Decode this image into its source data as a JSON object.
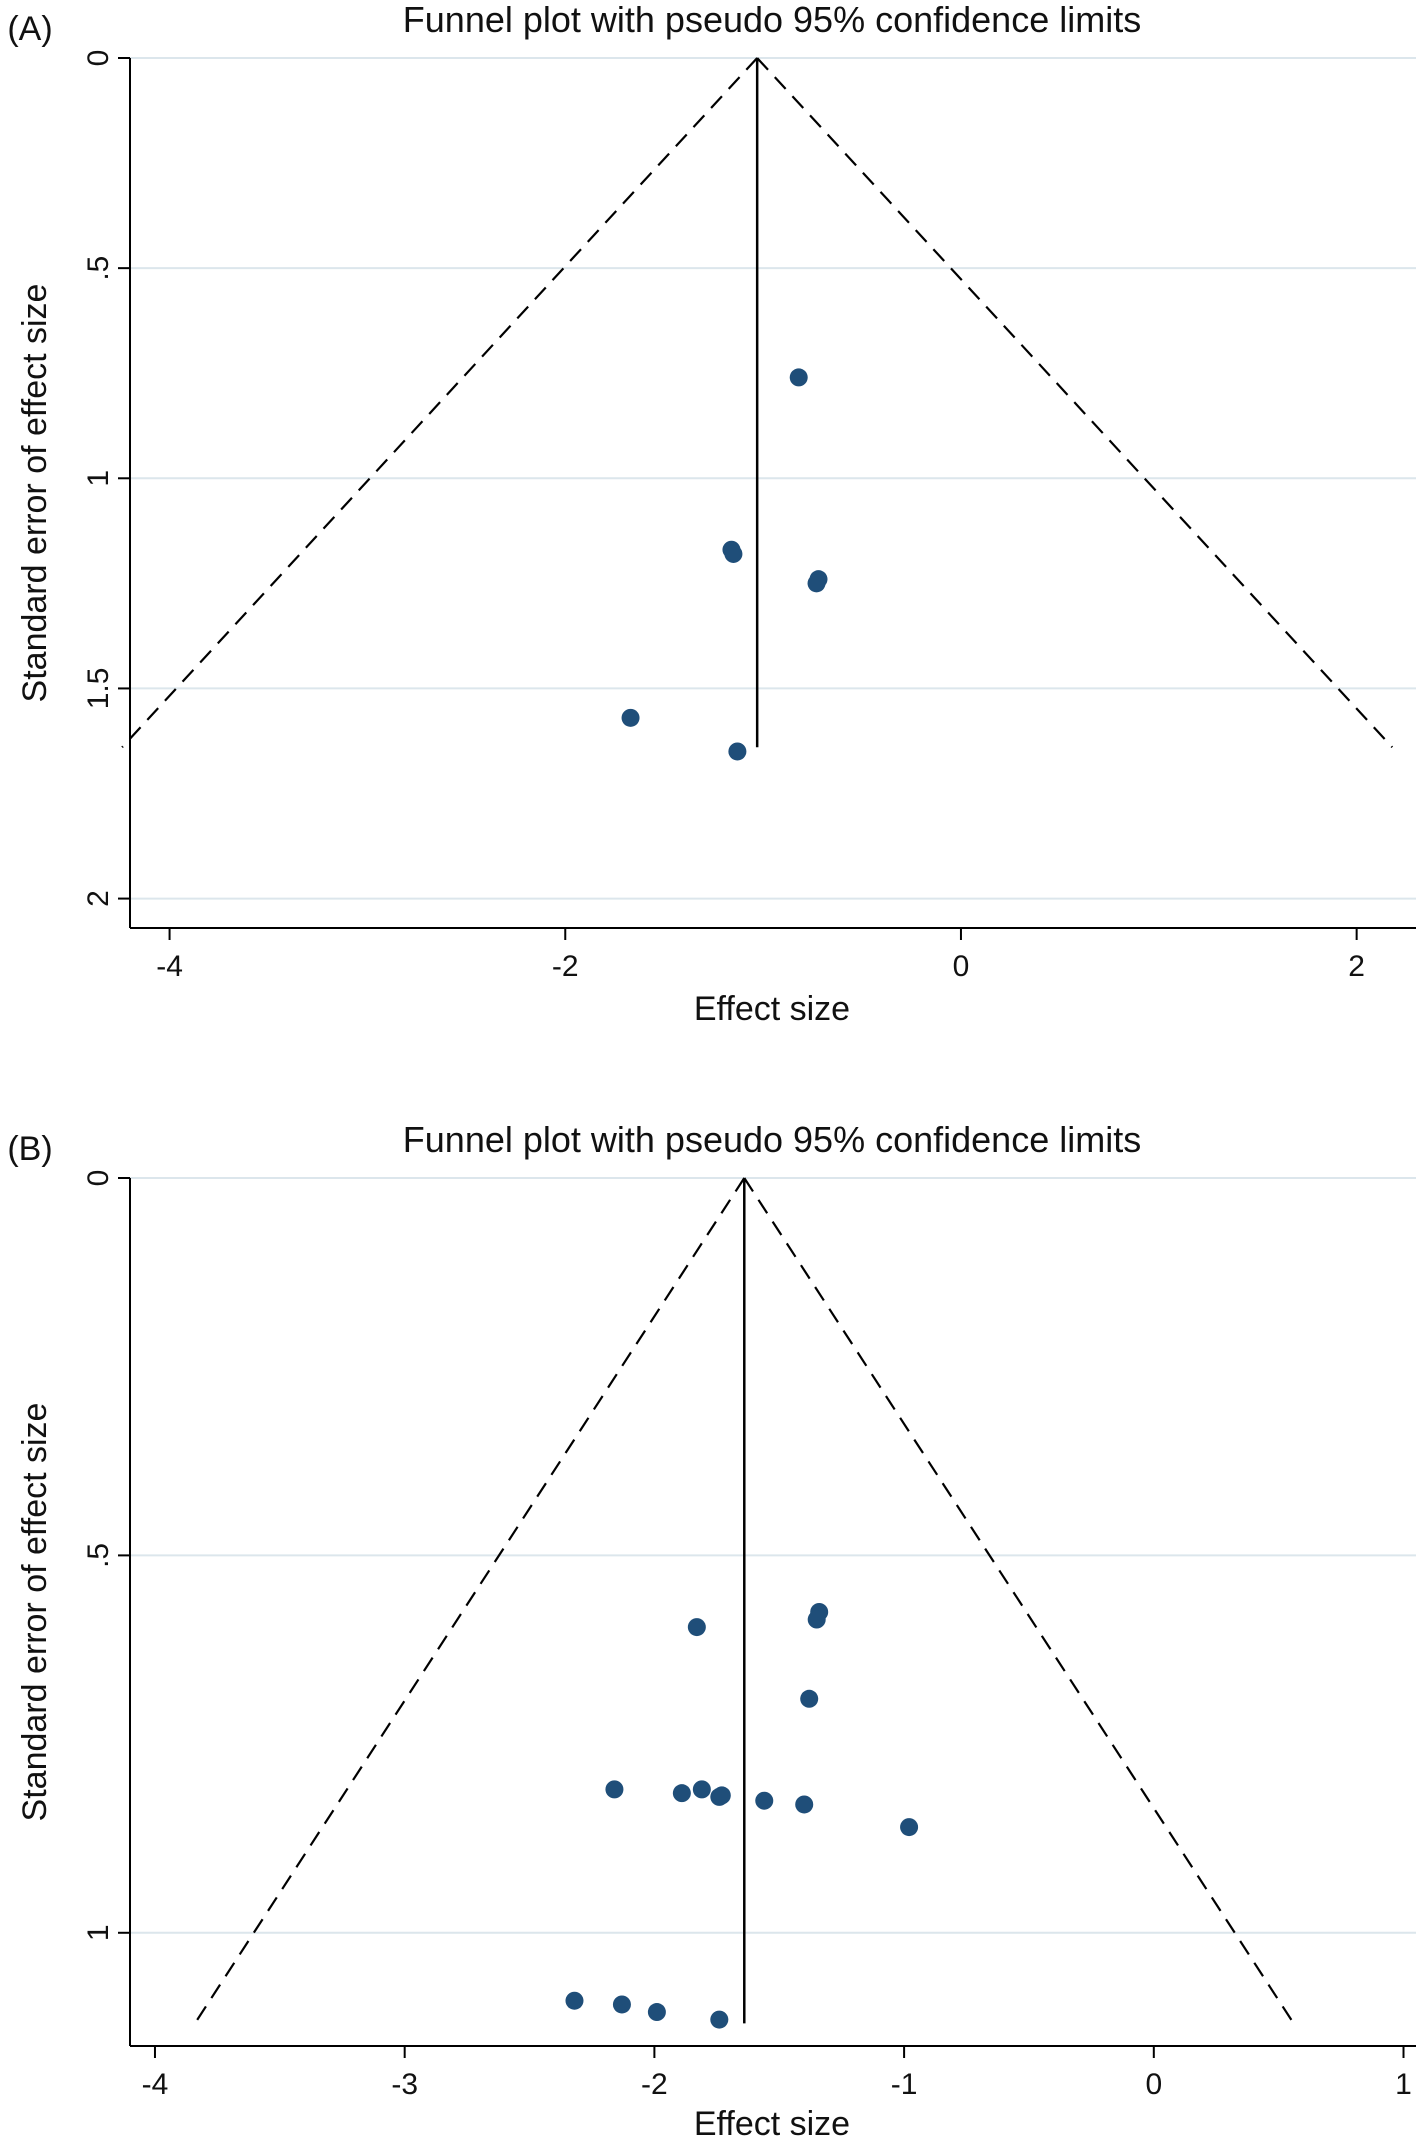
{
  "chart_data": [
    {
      "panel_label": "(A)",
      "type": "scatter",
      "title": "Funnel plot with pseudo 95% confidence limits",
      "xlabel": "Effect size",
      "ylabel": "Standard error of effect size",
      "xlim": [
        -4.2,
        2.3
      ],
      "ylim": [
        0,
        2.07
      ],
      "y_reversed": true,
      "xticks": [
        -4,
        -2,
        0,
        2
      ],
      "xtick_labels": [
        "-4",
        "-2",
        "0",
        "2"
      ],
      "yticks": [
        0,
        0.5,
        1,
        1.5,
        2
      ],
      "ytick_labels": [
        "0",
        ".5",
        "1",
        "1.5",
        "2"
      ],
      "grid": "horizontal",
      "pooled_effect": -1.03,
      "funnel": {
        "apex": [
          -1.03,
          0
        ],
        "max_se": 1.64,
        "left_end": -4.24,
        "right_end": 2.18
      },
      "points": [
        {
          "x": -0.82,
          "y": 0.76
        },
        {
          "x": -1.16,
          "y": 1.17
        },
        {
          "x": -1.15,
          "y": 1.18
        },
        {
          "x": -0.72,
          "y": 1.24
        },
        {
          "x": -0.73,
          "y": 1.25
        },
        {
          "x": -1.67,
          "y": 1.57
        },
        {
          "x": -1.13,
          "y": 1.65
        }
      ]
    },
    {
      "panel_label": "(B)",
      "type": "scatter",
      "title": "Funnel plot with pseudo 95% confidence limits",
      "xlabel": "Effect size",
      "ylabel": "Standard error of effect size",
      "xlim": [
        -4.1,
        1.05
      ],
      "ylim": [
        0,
        1.15
      ],
      "y_reversed": true,
      "xticks": [
        -4,
        -3,
        -2,
        -1,
        0,
        1
      ],
      "xtick_labels": [
        "-4",
        "-3",
        "-2",
        "-1",
        "0",
        "1"
      ],
      "yticks": [
        0,
        0.5,
        1
      ],
      "ytick_labels": [
        "0",
        ".5",
        "1"
      ],
      "grid": "horizontal",
      "pooled_effect": -1.64,
      "funnel": {
        "apex": [
          -1.64,
          0
        ],
        "max_se": 1.12,
        "left_end": -3.84,
        "right_end": 0.56
      },
      "points": [
        {
          "x": -1.34,
          "y": 0.575
        },
        {
          "x": -1.35,
          "y": 0.585
        },
        {
          "x": -1.83,
          "y": 0.595
        },
        {
          "x": -1.38,
          "y": 0.69
        },
        {
          "x": -2.16,
          "y": 0.81
        },
        {
          "x": -1.81,
          "y": 0.81
        },
        {
          "x": -1.89,
          "y": 0.815
        },
        {
          "x": -1.74,
          "y": 0.82
        },
        {
          "x": -1.73,
          "y": 0.818
        },
        {
          "x": -1.56,
          "y": 0.825
        },
        {
          "x": -1.4,
          "y": 0.83
        },
        {
          "x": -0.98,
          "y": 0.86
        },
        {
          "x": -2.32,
          "y": 1.09
        },
        {
          "x": -2.13,
          "y": 1.095
        },
        {
          "x": -1.99,
          "y": 1.105
        },
        {
          "x": -1.74,
          "y": 1.115
        }
      ]
    }
  ]
}
